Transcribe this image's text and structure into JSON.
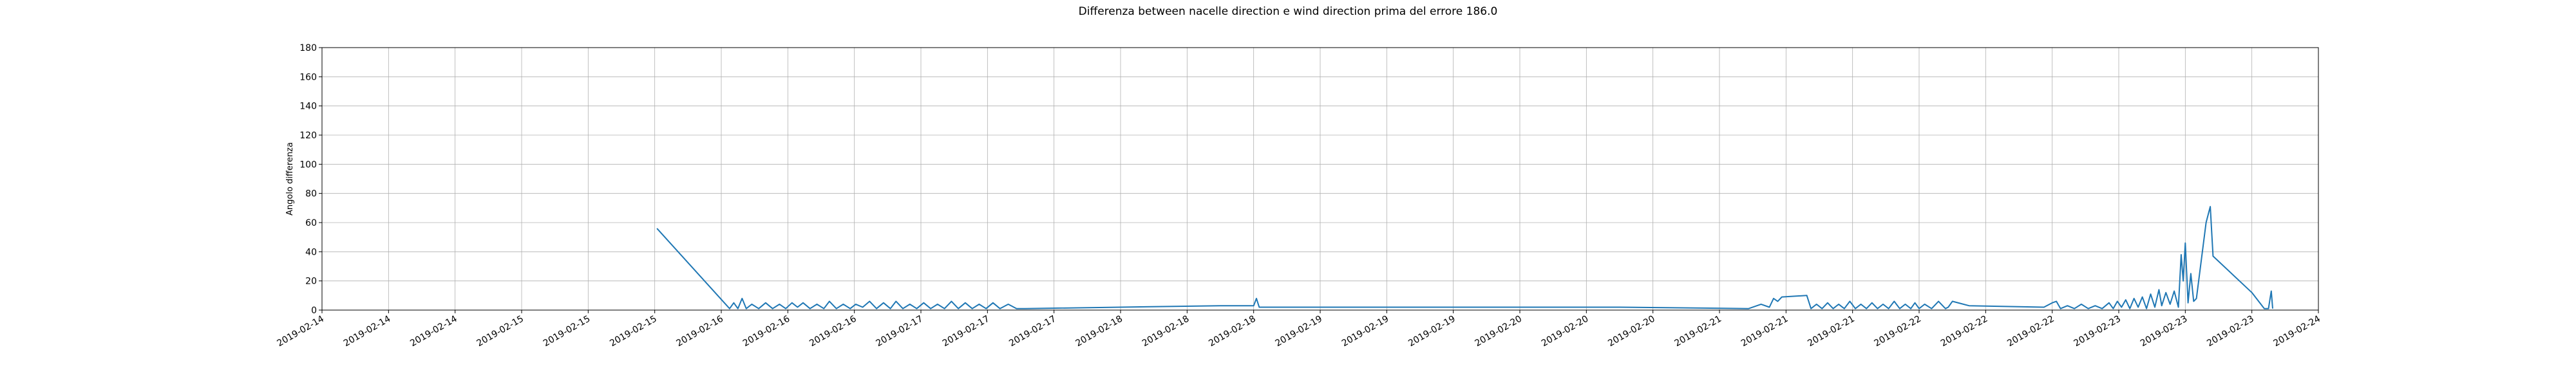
{
  "chart_data": {
    "type": "line",
    "title": "Differenza between nacelle direction e wind direction prima del errore 186.0",
    "xlabel": "",
    "ylabel": "Angolo differenza",
    "ylim": [
      0,
      180
    ],
    "yticks": [
      0,
      20,
      40,
      60,
      80,
      100,
      120,
      140,
      160,
      180
    ],
    "xlim": [
      "2019-02-14 00:00",
      "2019-02-24 00:00"
    ],
    "xticks": [
      {
        "label": "2019-02-14",
        "at": "2019-02-14 00:00"
      },
      {
        "label": "2019-02-14",
        "at": "2019-02-14 08:00"
      },
      {
        "label": "2019-02-14",
        "at": "2019-02-14 16:00"
      },
      {
        "label": "2019-02-15",
        "at": "2019-02-15 00:00"
      },
      {
        "label": "2019-02-15",
        "at": "2019-02-15 08:00"
      },
      {
        "label": "2019-02-15",
        "at": "2019-02-15 16:00"
      },
      {
        "label": "2019-02-16",
        "at": "2019-02-16 00:00"
      },
      {
        "label": "2019-02-16",
        "at": "2019-02-16 08:00"
      },
      {
        "label": "2019-02-16",
        "at": "2019-02-16 16:00"
      },
      {
        "label": "2019-02-17",
        "at": "2019-02-17 00:00"
      },
      {
        "label": "2019-02-17",
        "at": "2019-02-17 08:00"
      },
      {
        "label": "2019-02-17",
        "at": "2019-02-17 16:00"
      },
      {
        "label": "2019-02-18",
        "at": "2019-02-18 00:00"
      },
      {
        "label": "2019-02-18",
        "at": "2019-02-18 08:00"
      },
      {
        "label": "2019-02-18",
        "at": "2019-02-18 16:00"
      },
      {
        "label": "2019-02-19",
        "at": "2019-02-19 00:00"
      },
      {
        "label": "2019-02-19",
        "at": "2019-02-19 08:00"
      },
      {
        "label": "2019-02-19",
        "at": "2019-02-19 16:00"
      },
      {
        "label": "2019-02-20",
        "at": "2019-02-20 00:00"
      },
      {
        "label": "2019-02-20",
        "at": "2019-02-20 08:00"
      },
      {
        "label": "2019-02-20",
        "at": "2019-02-20 16:00"
      },
      {
        "label": "2019-02-21",
        "at": "2019-02-21 00:00"
      },
      {
        "label": "2019-02-21",
        "at": "2019-02-21 08:00"
      },
      {
        "label": "2019-02-21",
        "at": "2019-02-21 16:00"
      },
      {
        "label": "2019-02-22",
        "at": "2019-02-22 00:00"
      },
      {
        "label": "2019-02-22",
        "at": "2019-02-22 08:00"
      },
      {
        "label": "2019-02-22",
        "at": "2019-02-22 16:00"
      },
      {
        "label": "2019-02-23",
        "at": "2019-02-23 00:00"
      },
      {
        "label": "2019-02-23",
        "at": "2019-02-23 08:00"
      },
      {
        "label": "2019-02-23",
        "at": "2019-02-23 16:00"
      },
      {
        "label": "2019-02-24",
        "at": "2019-02-24 00:00"
      }
    ],
    "grid": true,
    "series": [
      {
        "color": "#1f77b4",
        "points": [
          [
            "2019-02-15 16:16",
            56
          ],
          [
            "2019-02-16 01:00",
            1
          ],
          [
            "2019-02-16 01:30",
            5
          ],
          [
            "2019-02-16 02:00",
            1
          ],
          [
            "2019-02-16 02:30",
            8
          ],
          [
            "2019-02-16 03:00",
            1
          ],
          [
            "2019-02-16 03:40",
            4
          ],
          [
            "2019-02-16 04:30",
            1
          ],
          [
            "2019-02-16 05:20",
            5
          ],
          [
            "2019-02-16 06:10",
            1
          ],
          [
            "2019-02-16 07:00",
            4
          ],
          [
            "2019-02-16 07:45",
            1
          ],
          [
            "2019-02-16 08:30",
            5
          ],
          [
            "2019-02-16 09:10",
            2
          ],
          [
            "2019-02-16 09:50",
            5
          ],
          [
            "2019-02-16 10:40",
            1
          ],
          [
            "2019-02-16 11:30",
            4
          ],
          [
            "2019-02-16 12:20",
            1
          ],
          [
            "2019-02-16 13:00",
            6
          ],
          [
            "2019-02-16 13:50",
            1
          ],
          [
            "2019-02-16 14:40",
            4
          ],
          [
            "2019-02-16 15:30",
            1
          ],
          [
            "2019-02-16 16:10",
            4
          ],
          [
            "2019-02-16 17:00",
            2
          ],
          [
            "2019-02-16 17:50",
            6
          ],
          [
            "2019-02-16 18:40",
            1
          ],
          [
            "2019-02-16 19:30",
            5
          ],
          [
            "2019-02-16 20:20",
            1
          ],
          [
            "2019-02-16 21:00",
            6
          ],
          [
            "2019-02-16 21:50",
            1
          ],
          [
            "2019-02-16 22:40",
            4
          ],
          [
            "2019-02-16 23:30",
            1
          ],
          [
            "2019-02-17 00:20",
            5
          ],
          [
            "2019-02-17 01:10",
            1
          ],
          [
            "2019-02-17 02:00",
            4
          ],
          [
            "2019-02-17 02:50",
            1
          ],
          [
            "2019-02-17 03:40",
            6
          ],
          [
            "2019-02-17 04:30",
            1
          ],
          [
            "2019-02-17 05:20",
            5
          ],
          [
            "2019-02-17 06:10",
            1
          ],
          [
            "2019-02-17 07:00",
            4
          ],
          [
            "2019-02-17 07:50",
            1
          ],
          [
            "2019-02-17 08:40",
            5
          ],
          [
            "2019-02-17 09:30",
            1
          ],
          [
            "2019-02-17 10:30",
            4
          ],
          [
            "2019-02-17 11:30",
            1
          ],
          [
            "2019-02-17 12:30",
            1
          ],
          [
            "2019-02-18 12:00",
            3
          ],
          [
            "2019-02-18 16:00",
            3
          ],
          [
            "2019-02-18 16:20",
            8
          ],
          [
            "2019-02-18 16:40",
            2
          ],
          [
            "2019-02-19 12:00",
            2
          ],
          [
            "2019-02-20 12:00",
            2
          ],
          [
            "2019-02-21 03:30",
            1
          ],
          [
            "2019-02-21 05:00",
            4
          ],
          [
            "2019-02-21 06:00",
            2
          ],
          [
            "2019-02-21 06:30",
            8
          ],
          [
            "2019-02-21 07:00",
            6
          ],
          [
            "2019-02-21 07:30",
            9
          ],
          [
            "2019-02-21 10:30",
            10
          ],
          [
            "2019-02-21 11:00",
            1
          ],
          [
            "2019-02-21 11:40",
            4
          ],
          [
            "2019-02-21 12:20",
            1
          ],
          [
            "2019-02-21 13:00",
            5
          ],
          [
            "2019-02-21 13:40",
            1
          ],
          [
            "2019-02-21 14:20",
            4
          ],
          [
            "2019-02-21 15:00",
            1
          ],
          [
            "2019-02-21 15:40",
            6
          ],
          [
            "2019-02-21 16:20",
            1
          ],
          [
            "2019-02-21 17:00",
            4
          ],
          [
            "2019-02-21 17:40",
            1
          ],
          [
            "2019-02-21 18:20",
            5
          ],
          [
            "2019-02-21 19:00",
            1
          ],
          [
            "2019-02-21 19:40",
            4
          ],
          [
            "2019-02-21 20:20",
            1
          ],
          [
            "2019-02-21 21:00",
            6
          ],
          [
            "2019-02-21 21:40",
            1
          ],
          [
            "2019-02-21 22:20",
            4
          ],
          [
            "2019-02-21 23:00",
            1
          ],
          [
            "2019-02-21 23:30",
            5
          ],
          [
            "2019-02-22 00:00",
            1
          ],
          [
            "2019-02-22 00:40",
            4
          ],
          [
            "2019-02-22 01:30",
            1
          ],
          [
            "2019-02-22 02:20",
            6
          ],
          [
            "2019-02-22 03:10",
            1
          ],
          [
            "2019-02-22 03:30",
            2
          ],
          [
            "2019-02-22 04:00",
            6
          ],
          [
            "2019-02-22 06:00",
            3
          ],
          [
            "2019-02-22 15:00",
            2
          ],
          [
            "2019-02-22 16:00",
            5
          ],
          [
            "2019-02-22 16:30",
            6
          ],
          [
            "2019-02-22 17:00",
            1
          ],
          [
            "2019-02-22 17:50",
            3
          ],
          [
            "2019-02-22 18:40",
            1
          ],
          [
            "2019-02-22 19:30",
            4
          ],
          [
            "2019-02-22 20:20",
            1
          ],
          [
            "2019-02-22 21:10",
            3
          ],
          [
            "2019-02-22 22:00",
            1
          ],
          [
            "2019-02-22 22:50",
            5
          ],
          [
            "2019-02-22 23:20",
            1
          ],
          [
            "2019-02-22 23:50",
            6
          ],
          [
            "2019-02-23 00:20",
            2
          ],
          [
            "2019-02-23 00:50",
            7
          ],
          [
            "2019-02-23 01:20",
            1
          ],
          [
            "2019-02-23 01:50",
            8
          ],
          [
            "2019-02-23 02:20",
            2
          ],
          [
            "2019-02-23 02:50",
            9
          ],
          [
            "2019-02-23 03:20",
            1
          ],
          [
            "2019-02-23 03:50",
            11
          ],
          [
            "2019-02-23 04:20",
            2
          ],
          [
            "2019-02-23 04:50",
            14
          ],
          [
            "2019-02-23 05:10",
            3
          ],
          [
            "2019-02-23 05:40",
            12
          ],
          [
            "2019-02-23 06:10",
            4
          ],
          [
            "2019-02-23 06:40",
            13
          ],
          [
            "2019-02-23 07:10",
            2
          ],
          [
            "2019-02-23 07:30",
            38
          ],
          [
            "2019-02-23 07:45",
            20
          ],
          [
            "2019-02-23 08:00",
            46
          ],
          [
            "2019-02-23 08:20",
            5
          ],
          [
            "2019-02-23 08:40",
            25
          ],
          [
            "2019-02-23 09:00",
            6
          ],
          [
            "2019-02-23 09:20",
            8
          ],
          [
            "2019-02-23 10:30",
            60
          ],
          [
            "2019-02-23 11:00",
            71
          ],
          [
            "2019-02-23 11:20",
            37
          ],
          [
            "2019-02-23 16:00",
            12
          ],
          [
            "2019-02-23 17:30",
            1
          ],
          [
            "2019-02-23 18:00",
            1
          ],
          [
            "2019-02-23 18:20",
            13
          ],
          [
            "2019-02-23 18:30",
            1
          ]
        ]
      }
    ]
  }
}
